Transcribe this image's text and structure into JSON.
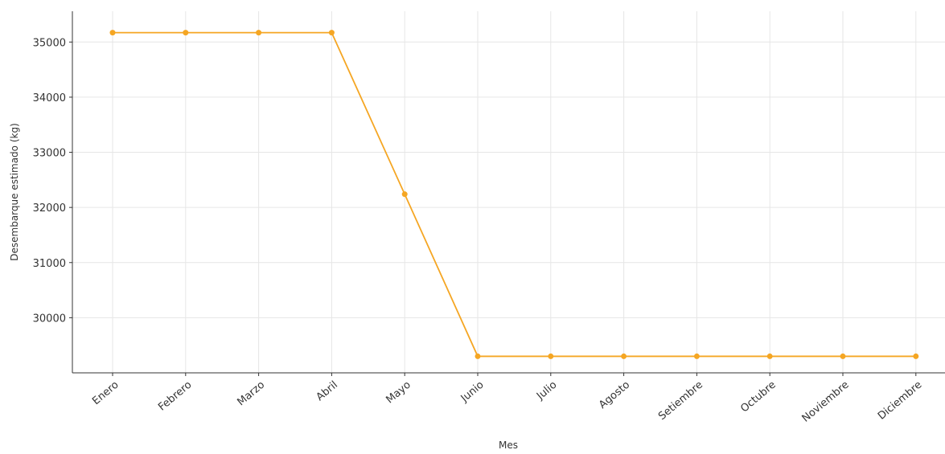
{
  "chart_data": {
    "type": "line",
    "title": "",
    "xlabel": "Mes",
    "ylabel": "Desembarque estimado (kg)",
    "categories": [
      "Enero",
      "Febrero",
      "Marzo",
      "Abril",
      "Mayo",
      "Junio",
      "Julio",
      "Agosto",
      "Setiembre",
      "Octubre",
      "Noviembre",
      "Diciembre"
    ],
    "series": [
      {
        "values": [
          35170,
          35170,
          35170,
          35170,
          32240,
          29300,
          29300,
          29300,
          29300,
          29300,
          29300,
          29300
        ],
        "color": "#f5a623"
      }
    ],
    "ylim": [
      29000,
      35500
    ],
    "yticks": [
      30000,
      31000,
      32000,
      33000,
      34000,
      35000
    ],
    "grid": true,
    "legend": "none"
  }
}
